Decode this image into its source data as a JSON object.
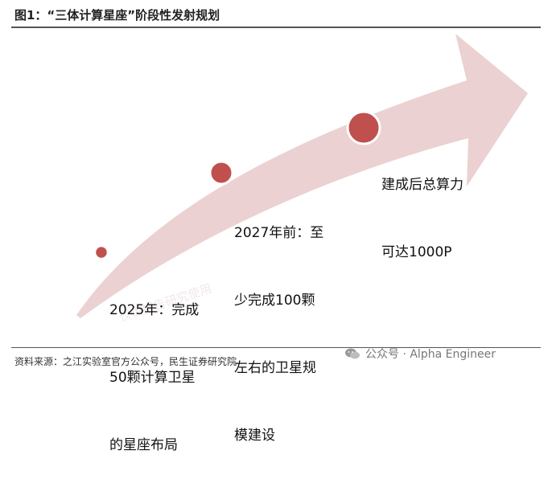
{
  "figure": {
    "title": "图1：“三体计算星座”阶段性发射规划"
  },
  "stages": [
    {
      "lines": [
        "2025年：完成",
        "50颗计算卫星",
        "的星座布局"
      ]
    },
    {
      "lines": [
        "2027年前：至",
        "少完成100颗",
        "左右的卫星规",
        "模建设"
      ]
    },
    {
      "lines": [
        "建成后总算力",
        "可达1000P"
      ]
    }
  ],
  "watermark": "仅供报告研究使用",
  "footer": {
    "source": "资料来源：之江实验室官方公众号，民生证券研究院",
    "wechat_label": "公众号 · Alpha Engineer"
  },
  "colors": {
    "arrow": "#e8c9c9",
    "node_fill": "#c0504d",
    "node_stroke": "#ffffff"
  }
}
